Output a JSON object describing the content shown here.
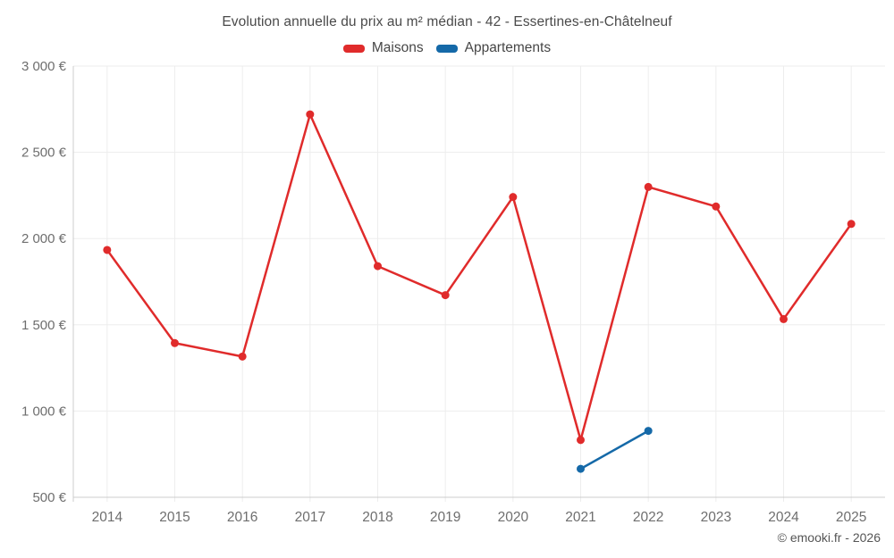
{
  "title": "Evolution annuelle du prix au m² médian - 42 - Essertines-en-Châtelneuf",
  "legend": [
    {
      "label": "Maisons",
      "color": "#e02b2b"
    },
    {
      "label": "Appartements",
      "color": "#1569a8"
    }
  ],
  "copyright": "© emooki.fr - 2026",
  "colors": {
    "maisons": "#e02b2b",
    "appartements": "#1569a8",
    "gridline": "#ededed",
    "axis_line": "#cccccc",
    "tick_label": "#6e6e6e"
  },
  "chart_data": {
    "type": "line",
    "x": [
      2014,
      2015,
      2016,
      2017,
      2018,
      2019,
      2020,
      2021,
      2022,
      2023,
      2024,
      2025
    ],
    "series": [
      {
        "name": "Maisons",
        "color": "#e02b2b",
        "values": [
          1934,
          1394,
          1316,
          2720,
          1840,
          1672,
          2241,
          832,
          2299,
          2186,
          1533,
          2085
        ]
      },
      {
        "name": "Appartements",
        "color": "#1569a8",
        "values": [
          null,
          null,
          null,
          null,
          null,
          null,
          null,
          665,
          885,
          null,
          null,
          null
        ]
      }
    ],
    "title": "Evolution annuelle du prix au m² médian - 42 - Essertines-en-Châtelneuf",
    "xlabel": "",
    "ylabel": "",
    "ylim": [
      500,
      3000
    ],
    "ytick_step": 500,
    "ytick_labels": [
      "500 €",
      "1 000 €",
      "1 500 €",
      "2 000 €",
      "2 500 €",
      "3 000 €"
    ],
    "xtick_labels": [
      "2014",
      "2015",
      "2016",
      "2017",
      "2018",
      "2019",
      "2020",
      "2021",
      "2022",
      "2023",
      "2024",
      "2025"
    ],
    "grid": true,
    "legend_position": "top",
    "annotations": [
      "© emooki.fr - 2026"
    ]
  }
}
